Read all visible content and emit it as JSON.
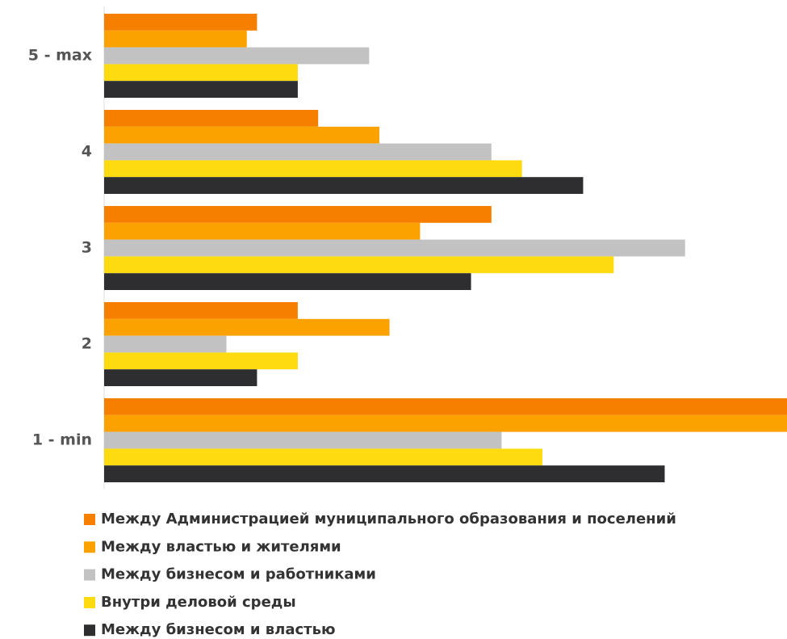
{
  "chart_data": {
    "type": "bar",
    "orientation": "horizontal",
    "categories": [
      "5 - max",
      "4",
      "3",
      "2",
      "1 - min"
    ],
    "xlim": [
      0,
      67
    ],
    "series": [
      {
        "name": "Между Администрацией муниципального образования и поселений",
        "color": "#f77f00",
        "values": [
          15,
          21,
          38,
          19,
          67
        ]
      },
      {
        "name": "Между властью и жителями",
        "color": "#fba100",
        "values": [
          14,
          27,
          31,
          28,
          67
        ]
      },
      {
        "name": "Между бизнесом и работниками",
        "color": "#c2c2c2",
        "values": [
          26,
          38,
          57,
          12,
          39
        ]
      },
      {
        "name": "Внутри деловой среды",
        "color": "#fedb10",
        "values": [
          19,
          41,
          50,
          19,
          43
        ]
      },
      {
        "name": "Между бизнесом и властью",
        "color": "#2e2e30",
        "values": [
          19,
          47,
          36,
          15,
          55
        ]
      }
    ]
  }
}
